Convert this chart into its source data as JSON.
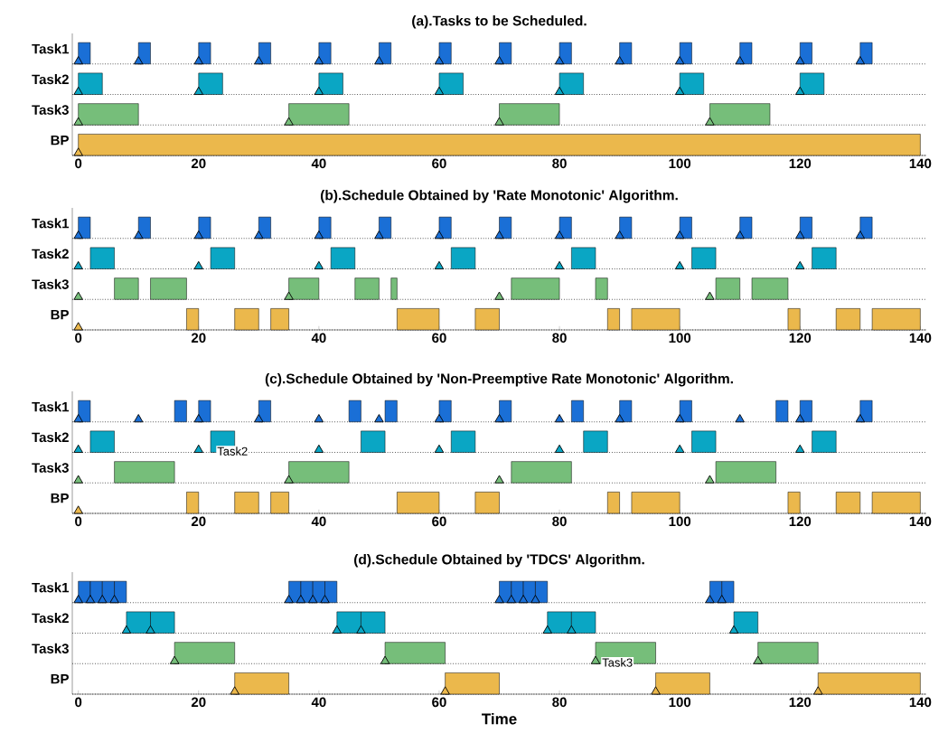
{
  "chart_data": [
    {
      "type": "bar",
      "orientation": "horizontal",
      "title": "(a).Tasks to be Scheduled.",
      "categories": [
        "Task1",
        "Task2",
        "Task3",
        "BP"
      ],
      "xlim": [
        -1,
        141
      ],
      "xticks": [
        0,
        20,
        40,
        60,
        80,
        100,
        120,
        140
      ],
      "grid": "y",
      "series": [
        {
          "colors": [
            "#1a6fd6",
            "#0aa6c4",
            "#76be7a",
            "#ebb84c"
          ],
          "base": [
            0,
            0,
            0,
            0
          ],
          "values": [
            2,
            4,
            10,
            140
          ]
        },
        {
          "colors": [
            "#1a6fd6",
            "#0aa6c4",
            "#76be7a",
            "#ebb84c"
          ],
          "base": [
            10,
            20,
            35,
            null
          ],
          "values": [
            2,
            4,
            10,
            null
          ]
        },
        {
          "colors": [
            "#1a6fd6",
            "#0aa6c4",
            "#76be7a",
            "#ebb84c"
          ],
          "base": [
            20,
            40,
            70,
            null
          ],
          "values": [
            2,
            4,
            10,
            null
          ]
        },
        {
          "colors": [
            "#1a6fd6",
            "#0aa6c4",
            "#76be7a",
            "#ebb84c"
          ],
          "base": [
            30,
            60,
            105,
            null
          ],
          "values": [
            2,
            4,
            10,
            null
          ]
        },
        {
          "colors": [
            "#1a6fd6",
            "#0aa6c4",
            "#76be7a",
            "#ebb84c"
          ],
          "base": [
            40,
            80,
            null,
            null
          ],
          "values": [
            2,
            4,
            null,
            null
          ]
        },
        {
          "colors": [
            "#1a6fd6",
            "#0aa6c4",
            "#76be7a",
            "#ebb84c"
          ],
          "base": [
            50,
            100,
            null,
            null
          ],
          "values": [
            2,
            4,
            null,
            null
          ]
        },
        {
          "colors": [
            "#1a6fd6",
            "#0aa6c4",
            "#76be7a",
            "#ebb84c"
          ],
          "base": [
            60,
            120,
            null,
            null
          ],
          "values": [
            2,
            4,
            null,
            null
          ]
        },
        {
          "colors": [
            "#1a6fd6",
            "#0aa6c4",
            "#76be7a",
            "#ebb84c"
          ],
          "base": [
            70,
            null,
            null,
            null
          ],
          "values": [
            2,
            null,
            null,
            null
          ]
        },
        {
          "colors": [
            "#1a6fd6",
            "#0aa6c4",
            "#76be7a",
            "#ebb84c"
          ],
          "base": [
            80,
            null,
            null,
            null
          ],
          "values": [
            2,
            null,
            null,
            null
          ]
        },
        {
          "colors": [
            "#1a6fd6",
            "#0aa6c4",
            "#76be7a",
            "#ebb84c"
          ],
          "base": [
            90,
            null,
            null,
            null
          ],
          "values": [
            2,
            null,
            null,
            null
          ]
        },
        {
          "colors": [
            "#1a6fd6",
            "#0aa6c4",
            "#76be7a",
            "#ebb84c"
          ],
          "base": [
            100,
            null,
            null,
            null
          ],
          "values": [
            2,
            null,
            null,
            null
          ]
        },
        {
          "colors": [
            "#1a6fd6",
            "#0aa6c4",
            "#76be7a",
            "#ebb84c"
          ],
          "base": [
            110,
            null,
            null,
            null
          ],
          "values": [
            2,
            null,
            null,
            null
          ]
        },
        {
          "colors": [
            "#1a6fd6",
            "#0aa6c4",
            "#76be7a",
            "#ebb84c"
          ],
          "base": [
            120,
            null,
            null,
            null
          ],
          "values": [
            2,
            null,
            null,
            null
          ]
        },
        {
          "colors": [
            "#1a6fd6",
            "#0aa6c4",
            "#76be7a",
            "#ebb84c"
          ],
          "base": [
            130,
            null,
            null,
            null
          ],
          "values": [
            2,
            null,
            null,
            null
          ]
        },
        {
          "type": "scatter",
          "marker": "triangle",
          "color": "#1a6fd6",
          "x": [
            "Task1",
            "Task1",
            "Task1",
            "Task1",
            "Task1",
            "Task1",
            "Task1",
            "Task1",
            "Task1",
            "Task1",
            "Task1",
            "Task1",
            "Task1",
            "Task1"
          ],
          "values": [
            0,
            10,
            20,
            30,
            40,
            50,
            60,
            70,
            80,
            90,
            100,
            110,
            120,
            130
          ]
        },
        {
          "type": "scatter",
          "marker": "triangle",
          "color": "#0aa6c4",
          "x": [
            "Task2",
            "Task2",
            "Task2",
            "Task2",
            "Task2",
            "Task2",
            "Task2"
          ],
          "values": [
            0,
            20,
            40,
            60,
            80,
            100,
            120
          ]
        },
        {
          "type": "scatter",
          "marker": "triangle",
          "color": "#76be7a",
          "x": [
            "Task3",
            "Task3",
            "Task3",
            "Task3"
          ],
          "values": [
            0,
            35,
            70,
            105
          ]
        },
        {
          "type": "scatter",
          "marker": "triangle",
          "color": "#ebb84c",
          "x": [
            "BP"
          ],
          "values": [
            0
          ]
        }
      ]
    },
    {
      "type": "bar",
      "orientation": "horizontal",
      "title": "(b).Schedule Obtained by 'Rate Monotonic' Algorithm.",
      "categories": [
        "Task1",
        "Task2",
        "Task3",
        "BP"
      ],
      "xlim": [
        -1,
        141
      ],
      "xticks": [
        0,
        20,
        40,
        60,
        80,
        100,
        120,
        140
      ],
      "grid": "y",
      "series": [
        {
          "colors": [
            "#1a6fd6",
            "#0aa6c4",
            "#76be7a",
            "#ebb84c"
          ],
          "base": [
            0,
            2,
            6,
            18
          ],
          "values": [
            2,
            4,
            4,
            2
          ]
        },
        {
          "colors": [
            "#1a6fd6",
            "#0aa6c4",
            "#76be7a",
            "#ebb84c"
          ],
          "base": [
            10,
            22,
            12,
            26
          ],
          "values": [
            2,
            4,
            6,
            4
          ]
        },
        {
          "colors": [
            "#1a6fd6",
            "#0aa6c4",
            "#76be7a",
            "#ebb84c"
          ],
          "base": [
            20,
            42,
            35,
            32
          ],
          "values": [
            2,
            4,
            5,
            3
          ]
        },
        {
          "colors": [
            "#1a6fd6",
            "#0aa6c4",
            "#76be7a",
            "#ebb84c"
          ],
          "base": [
            30,
            62,
            46,
            53
          ],
          "values": [
            2,
            4,
            4,
            7
          ]
        },
        {
          "colors": [
            "#1a6fd6",
            "#0aa6c4",
            "#76be7a",
            "#ebb84c"
          ],
          "base": [
            40,
            82,
            52,
            66
          ],
          "values": [
            2,
            4,
            1,
            4
          ]
        },
        {
          "colors": [
            "#1a6fd6",
            "#0aa6c4",
            "#76be7a",
            "#ebb84c"
          ],
          "base": [
            50,
            102,
            72,
            88
          ],
          "values": [
            2,
            4,
            8,
            2
          ]
        },
        {
          "colors": [
            "#1a6fd6",
            "#0aa6c4",
            "#76be7a",
            "#ebb84c"
          ],
          "base": [
            60,
            122,
            86,
            92
          ],
          "values": [
            2,
            4,
            2,
            8
          ]
        },
        {
          "colors": [
            "#1a6fd6",
            "#0aa6c4",
            "#76be7a",
            "#ebb84c"
          ],
          "base": [
            70,
            null,
            106,
            118
          ],
          "values": [
            2,
            null,
            4,
            2
          ]
        },
        {
          "colors": [
            "#1a6fd6",
            "#0aa6c4",
            "#76be7a",
            "#ebb84c"
          ],
          "base": [
            80,
            null,
            112,
            126
          ],
          "values": [
            2,
            null,
            6,
            4
          ]
        },
        {
          "colors": [
            "#1a6fd6",
            "#0aa6c4",
            "#76be7a",
            "#ebb84c"
          ],
          "base": [
            90,
            null,
            null,
            132
          ],
          "values": [
            2,
            null,
            null,
            8
          ]
        },
        {
          "colors": [
            "#1a6fd6",
            "#0aa6c4",
            "#76be7a",
            "#ebb84c"
          ],
          "base": [
            100,
            null,
            null,
            null
          ],
          "values": [
            2,
            null,
            null,
            null
          ]
        },
        {
          "colors": [
            "#1a6fd6",
            "#0aa6c4",
            "#76be7a",
            "#ebb84c"
          ],
          "base": [
            110,
            null,
            null,
            null
          ],
          "values": [
            2,
            null,
            null,
            null
          ]
        },
        {
          "colors": [
            "#1a6fd6",
            "#0aa6c4",
            "#76be7a",
            "#ebb84c"
          ],
          "base": [
            120,
            null,
            null,
            null
          ],
          "values": [
            2,
            null,
            null,
            null
          ]
        },
        {
          "colors": [
            "#1a6fd6",
            "#0aa6c4",
            "#76be7a",
            "#ebb84c"
          ],
          "base": [
            130,
            null,
            null,
            null
          ],
          "values": [
            2,
            null,
            null,
            null
          ]
        },
        {
          "type": "scatter",
          "marker": "triangle",
          "color": "#1a6fd6",
          "x": [
            "Task1",
            "Task1",
            "Task1",
            "Task1",
            "Task1",
            "Task1",
            "Task1",
            "Task1",
            "Task1",
            "Task1",
            "Task1",
            "Task1",
            "Task1",
            "Task1"
          ],
          "values": [
            0,
            10,
            20,
            30,
            40,
            50,
            60,
            70,
            80,
            90,
            100,
            110,
            120,
            130
          ]
        },
        {
          "type": "scatter",
          "marker": "triangle",
          "color": "#0aa6c4",
          "x": [
            "Task2",
            "Task2",
            "Task2",
            "Task2",
            "Task2",
            "Task2",
            "Task2"
          ],
          "values": [
            0,
            20,
            40,
            60,
            80,
            100,
            120
          ]
        },
        {
          "type": "scatter",
          "marker": "triangle",
          "color": "#76be7a",
          "x": [
            "Task3",
            "Task3",
            "Task3",
            "Task3"
          ],
          "values": [
            0,
            35,
            70,
            105
          ]
        },
        {
          "type": "scatter",
          "marker": "triangle",
          "color": "#ebb84c",
          "x": [
            "BP"
          ],
          "values": [
            0
          ]
        }
      ]
    },
    {
      "type": "bar",
      "orientation": "horizontal",
      "title": "(c).Schedule Obtained by 'Non-Preemptive Rate Monotonic' Algorithm.",
      "categories": [
        "Task1",
        "Task2",
        "Task3",
        "BP"
      ],
      "xlim": [
        -1,
        141
      ],
      "xticks": [
        0,
        20,
        40,
        60,
        80,
        100,
        120,
        140
      ],
      "grid": "y",
      "annotations": [
        {
          "text": "Task2",
          "x": 22,
          "y": "Task2"
        }
      ],
      "series": [
        {
          "colors": [
            "#1a6fd6",
            "#0aa6c4",
            "#76be7a",
            "#ebb84c"
          ],
          "base": [
            0,
            2,
            6,
            18
          ],
          "values": [
            2,
            4,
            10,
            2
          ]
        },
        {
          "colors": [
            "#1a6fd6",
            "#0aa6c4",
            "#76be7a",
            "#ebb84c"
          ],
          "base": [
            16,
            22,
            35,
            26
          ],
          "values": [
            2,
            4,
            10,
            4
          ]
        },
        {
          "colors": [
            "#1a6fd6",
            "#0aa6c4",
            "#76be7a",
            "#ebb84c"
          ],
          "base": [
            20,
            47,
            72,
            32
          ],
          "values": [
            2,
            4,
            10,
            3
          ]
        },
        {
          "colors": [
            "#1a6fd6",
            "#0aa6c4",
            "#76be7a",
            "#ebb84c"
          ],
          "base": [
            30,
            62,
            106,
            53
          ],
          "values": [
            2,
            4,
            10,
            7
          ]
        },
        {
          "colors": [
            "#1a6fd6",
            "#0aa6c4",
            "#76be7a",
            "#ebb84c"
          ],
          "base": [
            45,
            84,
            null,
            66
          ],
          "values": [
            2,
            4,
            null,
            4
          ]
        },
        {
          "colors": [
            "#1a6fd6",
            "#0aa6c4",
            "#76be7a",
            "#ebb84c"
          ],
          "base": [
            51,
            102,
            null,
            88
          ],
          "values": [
            2,
            4,
            null,
            2
          ]
        },
        {
          "colors": [
            "#1a6fd6",
            "#0aa6c4",
            "#76be7a",
            "#ebb84c"
          ],
          "base": [
            60,
            122,
            null,
            92
          ],
          "values": [
            2,
            4,
            null,
            8
          ]
        },
        {
          "colors": [
            "#1a6fd6",
            "#0aa6c4",
            "#76be7a",
            "#ebb84c"
          ],
          "base": [
            70,
            null,
            null,
            118
          ],
          "values": [
            2,
            null,
            null,
            2
          ]
        },
        {
          "colors": [
            "#1a6fd6",
            "#0aa6c4",
            "#76be7a",
            "#ebb84c"
          ],
          "base": [
            82,
            null,
            null,
            126
          ],
          "values": [
            2,
            null,
            null,
            4
          ]
        },
        {
          "colors": [
            "#1a6fd6",
            "#0aa6c4",
            "#76be7a",
            "#ebb84c"
          ],
          "base": [
            90,
            null,
            null,
            132
          ],
          "values": [
            2,
            null,
            null,
            8
          ]
        },
        {
          "colors": [
            "#1a6fd6",
            "#0aa6c4",
            "#76be7a",
            "#ebb84c"
          ],
          "base": [
            100,
            null,
            null,
            null
          ],
          "values": [
            2,
            null,
            null,
            null
          ]
        },
        {
          "colors": [
            "#1a6fd6",
            "#0aa6c4",
            "#76be7a",
            "#ebb84c"
          ],
          "base": [
            116,
            null,
            null,
            null
          ],
          "values": [
            2,
            null,
            null,
            null
          ]
        },
        {
          "colors": [
            "#1a6fd6",
            "#0aa6c4",
            "#76be7a",
            "#ebb84c"
          ],
          "base": [
            120,
            null,
            null,
            null
          ],
          "values": [
            2,
            null,
            null,
            null
          ]
        },
        {
          "colors": [
            "#1a6fd6",
            "#0aa6c4",
            "#76be7a",
            "#ebb84c"
          ],
          "base": [
            130,
            null,
            null,
            null
          ],
          "values": [
            2,
            null,
            null,
            null
          ]
        },
        {
          "type": "scatter",
          "marker": "triangle",
          "color": "#1a6fd6",
          "x": [
            "Task1",
            "Task1",
            "Task1",
            "Task1",
            "Task1",
            "Task1",
            "Task1",
            "Task1",
            "Task1",
            "Task1",
            "Task1",
            "Task1",
            "Task1",
            "Task1"
          ],
          "values": [
            0,
            10,
            20,
            30,
            40,
            50,
            60,
            70,
            80,
            90,
            100,
            110,
            120,
            130
          ]
        },
        {
          "type": "scatter",
          "marker": "triangle",
          "color": "#0aa6c4",
          "x": [
            "Task2",
            "Task2",
            "Task2",
            "Task2",
            "Task2",
            "Task2",
            "Task2"
          ],
          "values": [
            0,
            20,
            40,
            60,
            80,
            100,
            120
          ]
        },
        {
          "type": "scatter",
          "marker": "triangle",
          "color": "#76be7a",
          "x": [
            "Task3",
            "Task3",
            "Task3",
            "Task3"
          ],
          "values": [
            0,
            35,
            70,
            105
          ]
        },
        {
          "type": "scatter",
          "marker": "triangle",
          "color": "#ebb84c",
          "x": [
            "BP"
          ],
          "values": [
            0
          ]
        }
      ]
    },
    {
      "type": "bar",
      "orientation": "horizontal",
      "title": "(d).Schedule Obtained by 'TDCS' Algorithm.",
      "xlabel": "Time",
      "categories": [
        "Task1",
        "Task2",
        "Task3",
        "BP"
      ],
      "xlim": [
        -1,
        141
      ],
      "xticks": [
        0,
        20,
        40,
        60,
        80,
        100,
        120,
        140
      ],
      "grid": "y",
      "annotations": [
        {
          "text": "Task3",
          "x": 86,
          "y": "Task3"
        }
      ],
      "series": [
        {
          "colors": [
            "#1a6fd6",
            "#0aa6c4",
            "#76be7a",
            "#ebb84c"
          ],
          "base": [
            0,
            8,
            16,
            26
          ],
          "values": [
            2,
            4,
            10,
            9
          ]
        },
        {
          "colors": [
            "#1a6fd6",
            "#0aa6c4",
            "#76be7a",
            "#ebb84c"
          ],
          "base": [
            2,
            12,
            51,
            61
          ],
          "values": [
            2,
            4,
            10,
            9
          ]
        },
        {
          "colors": [
            "#1a6fd6",
            "#0aa6c4",
            "#76be7a",
            "#ebb84c"
          ],
          "base": [
            4,
            43,
            86,
            96
          ],
          "values": [
            2,
            4,
            10,
            9
          ]
        },
        {
          "colors": [
            "#1a6fd6",
            "#0aa6c4",
            "#76be7a",
            "#ebb84c"
          ],
          "base": [
            6,
            47,
            113,
            123
          ],
          "values": [
            2,
            4,
            10,
            17
          ]
        },
        {
          "colors": [
            "#1a6fd6",
            "#0aa6c4",
            "#76be7a",
            "#ebb84c"
          ],
          "base": [
            35,
            78,
            null,
            null
          ],
          "values": [
            2,
            4,
            null,
            null
          ]
        },
        {
          "colors": [
            "#1a6fd6",
            "#0aa6c4",
            "#76be7a",
            "#ebb84c"
          ],
          "base": [
            37,
            82,
            null,
            null
          ],
          "values": [
            2,
            4,
            null,
            null
          ]
        },
        {
          "colors": [
            "#1a6fd6",
            "#0aa6c4",
            "#76be7a",
            "#ebb84c"
          ],
          "base": [
            39,
            109,
            null,
            null
          ],
          "values": [
            2,
            4,
            null,
            null
          ]
        },
        {
          "colors": [
            "#1a6fd6",
            "#0aa6c4",
            "#76be7a",
            "#ebb84c"
          ],
          "base": [
            41,
            null,
            null,
            null
          ],
          "values": [
            2,
            null,
            null,
            null
          ]
        },
        {
          "colors": [
            "#1a6fd6",
            "#0aa6c4",
            "#76be7a",
            "#ebb84c"
          ],
          "base": [
            70,
            null,
            null,
            null
          ],
          "values": [
            2,
            null,
            null,
            null
          ]
        },
        {
          "colors": [
            "#1a6fd6",
            "#0aa6c4",
            "#76be7a",
            "#ebb84c"
          ],
          "base": [
            72,
            null,
            null,
            null
          ],
          "values": [
            2,
            null,
            null,
            null
          ]
        },
        {
          "colors": [
            "#1a6fd6",
            "#0aa6c4",
            "#76be7a",
            "#ebb84c"
          ],
          "base": [
            74,
            null,
            null,
            null
          ],
          "values": [
            2,
            null,
            null,
            null
          ]
        },
        {
          "colors": [
            "#1a6fd6",
            "#0aa6c4",
            "#76be7a",
            "#ebb84c"
          ],
          "base": [
            76,
            null,
            null,
            null
          ],
          "values": [
            2,
            null,
            null,
            null
          ]
        },
        {
          "colors": [
            "#1a6fd6",
            "#0aa6c4",
            "#76be7a",
            "#ebb84c"
          ],
          "base": [
            105,
            null,
            null,
            null
          ],
          "values": [
            2,
            null,
            null,
            null
          ]
        },
        {
          "colors": [
            "#1a6fd6",
            "#0aa6c4",
            "#76be7a",
            "#ebb84c"
          ],
          "base": [
            107,
            null,
            null,
            null
          ],
          "values": [
            2,
            null,
            null,
            null
          ]
        },
        {
          "type": "scatter",
          "marker": "triangle",
          "color": "#1a6fd6",
          "x": [
            "Task1",
            "Task1",
            "Task1",
            "Task1",
            "Task1",
            "Task1",
            "Task1",
            "Task1",
            "Task1",
            "Task1",
            "Task1",
            "Task1",
            "Task1",
            "Task1"
          ],
          "values": [
            0,
            2,
            4,
            6,
            35,
            37,
            39,
            41,
            70,
            72,
            74,
            76,
            105,
            107
          ]
        },
        {
          "type": "scatter",
          "marker": "triangle",
          "color": "#0aa6c4",
          "x": [
            "Task2",
            "Task2",
            "Task2",
            "Task2",
            "Task2",
            "Task2",
            "Task2"
          ],
          "values": [
            8,
            12,
            43,
            47,
            78,
            82,
            109
          ]
        },
        {
          "type": "scatter",
          "marker": "triangle",
          "color": "#76be7a",
          "x": [
            "Task3",
            "Task3",
            "Task3",
            "Task3"
          ],
          "values": [
            16,
            51,
            86,
            113
          ]
        },
        {
          "type": "scatter",
          "marker": "triangle",
          "color": "#ebb84c",
          "x": [
            "BP",
            "BP",
            "BP",
            "BP"
          ],
          "values": [
            26,
            61,
            96,
            123
          ]
        }
      ]
    }
  ]
}
